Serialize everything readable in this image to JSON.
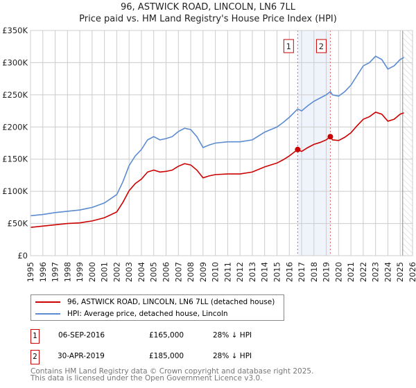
{
  "chart_data": {
    "type": "line",
    "title": "96, ASTWICK ROAD, LINCOLN, LN6 7LL",
    "subtitle": "Price paid vs. HM Land Registry's House Price Index (HPI)",
    "xlim": [
      1995,
      2026
    ],
    "ylim": [
      0,
      350000
    ],
    "y_ticks": [
      {
        "v": 0,
        "label": "£0"
      },
      {
        "v": 50000,
        "label": "£50K"
      },
      {
        "v": 100000,
        "label": "£100K"
      },
      {
        "v": 150000,
        "label": "£150K"
      },
      {
        "v": 200000,
        "label": "£200K"
      },
      {
        "v": 250000,
        "label": "£250K"
      },
      {
        "v": 300000,
        "label": "£300K"
      },
      {
        "v": 350000,
        "label": "£350K"
      }
    ],
    "x_ticks": [
      "1995",
      "1996",
      "1997",
      "1998",
      "1999",
      "2000",
      "2001",
      "2002",
      "2003",
      "2004",
      "2005",
      "2006",
      "2007",
      "2008",
      "2009",
      "2010",
      "2011",
      "2012",
      "2013",
      "2014",
      "2015",
      "2016",
      "2017",
      "2018",
      "2019",
      "2020",
      "2021",
      "2022",
      "2023",
      "2024",
      "2025",
      "2026"
    ],
    "grid": true,
    "shaded_span": [
      2016.68,
      2019.33
    ],
    "forecast_hatch_from": 2025.2,
    "series": [
      {
        "name": "96, ASTWICK ROAD, LINCOLN, LN6 7LL (detached house)",
        "color": "#cc0000",
        "x": [
          1995,
          1996,
          1997,
          1998,
          1999,
          2000,
          2001,
          2002,
          2002.5,
          2003,
          2003.5,
          2004,
          2004.5,
          2005,
          2005.5,
          2006,
          2006.5,
          2007,
          2007.5,
          2008,
          2008.5,
          2009,
          2009.5,
          2010,
          2011,
          2012,
          2013,
          2014,
          2015,
          2015.5,
          2016,
          2016.68,
          2017,
          2017.5,
          2018,
          2018.5,
          2019,
          2019.33,
          2019.5,
          2020,
          2020.5,
          2021,
          2021.5,
          2022,
          2022.5,
          2023,
          2023.5,
          2024,
          2024.5,
          2025,
          2025.3
        ],
        "y": [
          44000,
          46000,
          48000,
          50000,
          51000,
          54000,
          59000,
          68000,
          83000,
          101000,
          112000,
          119000,
          130000,
          133000,
          130000,
          131000,
          133000,
          139000,
          143000,
          141000,
          133000,
          121000,
          124000,
          126000,
          127000,
          127000,
          130000,
          138000,
          144000,
          149000,
          155000,
          165000,
          162000,
          168000,
          173000,
          176000,
          180000,
          185000,
          180000,
          179000,
          184000,
          191000,
          202000,
          212000,
          216000,
          223000,
          220000,
          209000,
          212000,
          220000,
          222000
        ]
      },
      {
        "name": "HPI: Average price, detached house, Lincoln",
        "color": "#5b8bd0",
        "x": [
          1995,
          1996,
          1997,
          1998,
          1999,
          2000,
          2001,
          2002,
          2002.5,
          2003,
          2003.5,
          2004,
          2004.5,
          2005,
          2005.5,
          2006,
          2006.5,
          2007,
          2007.5,
          2008,
          2008.5,
          2009,
          2009.5,
          2010,
          2011,
          2012,
          2013,
          2014,
          2015,
          2015.5,
          2016,
          2016.68,
          2017,
          2017.5,
          2018,
          2018.5,
          2019,
          2019.33,
          2019.5,
          2020,
          2020.5,
          2021,
          2021.5,
          2022,
          2022.5,
          2023,
          2023.5,
          2024,
          2024.5,
          2025,
          2025.3
        ],
        "y": [
          62000,
          64000,
          67000,
          69000,
          71000,
          75000,
          82000,
          95000,
          115000,
          140000,
          155000,
          165000,
          180000,
          185000,
          180000,
          182000,
          185000,
          193000,
          198000,
          196000,
          185000,
          168000,
          172000,
          175000,
          177000,
          177000,
          180000,
          192000,
          200000,
          207000,
          215000,
          228000,
          225000,
          233000,
          240000,
          245000,
          250000,
          255000,
          250000,
          248000,
          255000,
          265000,
          280000,
          295000,
          300000,
          310000,
          305000,
          290000,
          295000,
          305000,
          308000
        ]
      }
    ],
    "annotations": [
      {
        "label": "1",
        "x": 2016.68,
        "y": 165000
      },
      {
        "label": "2",
        "x": 2019.33,
        "y": 185000
      }
    ]
  },
  "transactions": [
    {
      "num": "1",
      "date": "06-SEP-2016",
      "price": "£165,000",
      "delta": "28% ↓ HPI"
    },
    {
      "num": "2",
      "date": "30-APR-2019",
      "price": "£185,000",
      "delta": "28% ↓ HPI"
    }
  ],
  "footer": [
    "Contains HM Land Registry data © Crown copyright and database right 2025.",
    "This data is licensed under the Open Government Licence v3.0."
  ]
}
